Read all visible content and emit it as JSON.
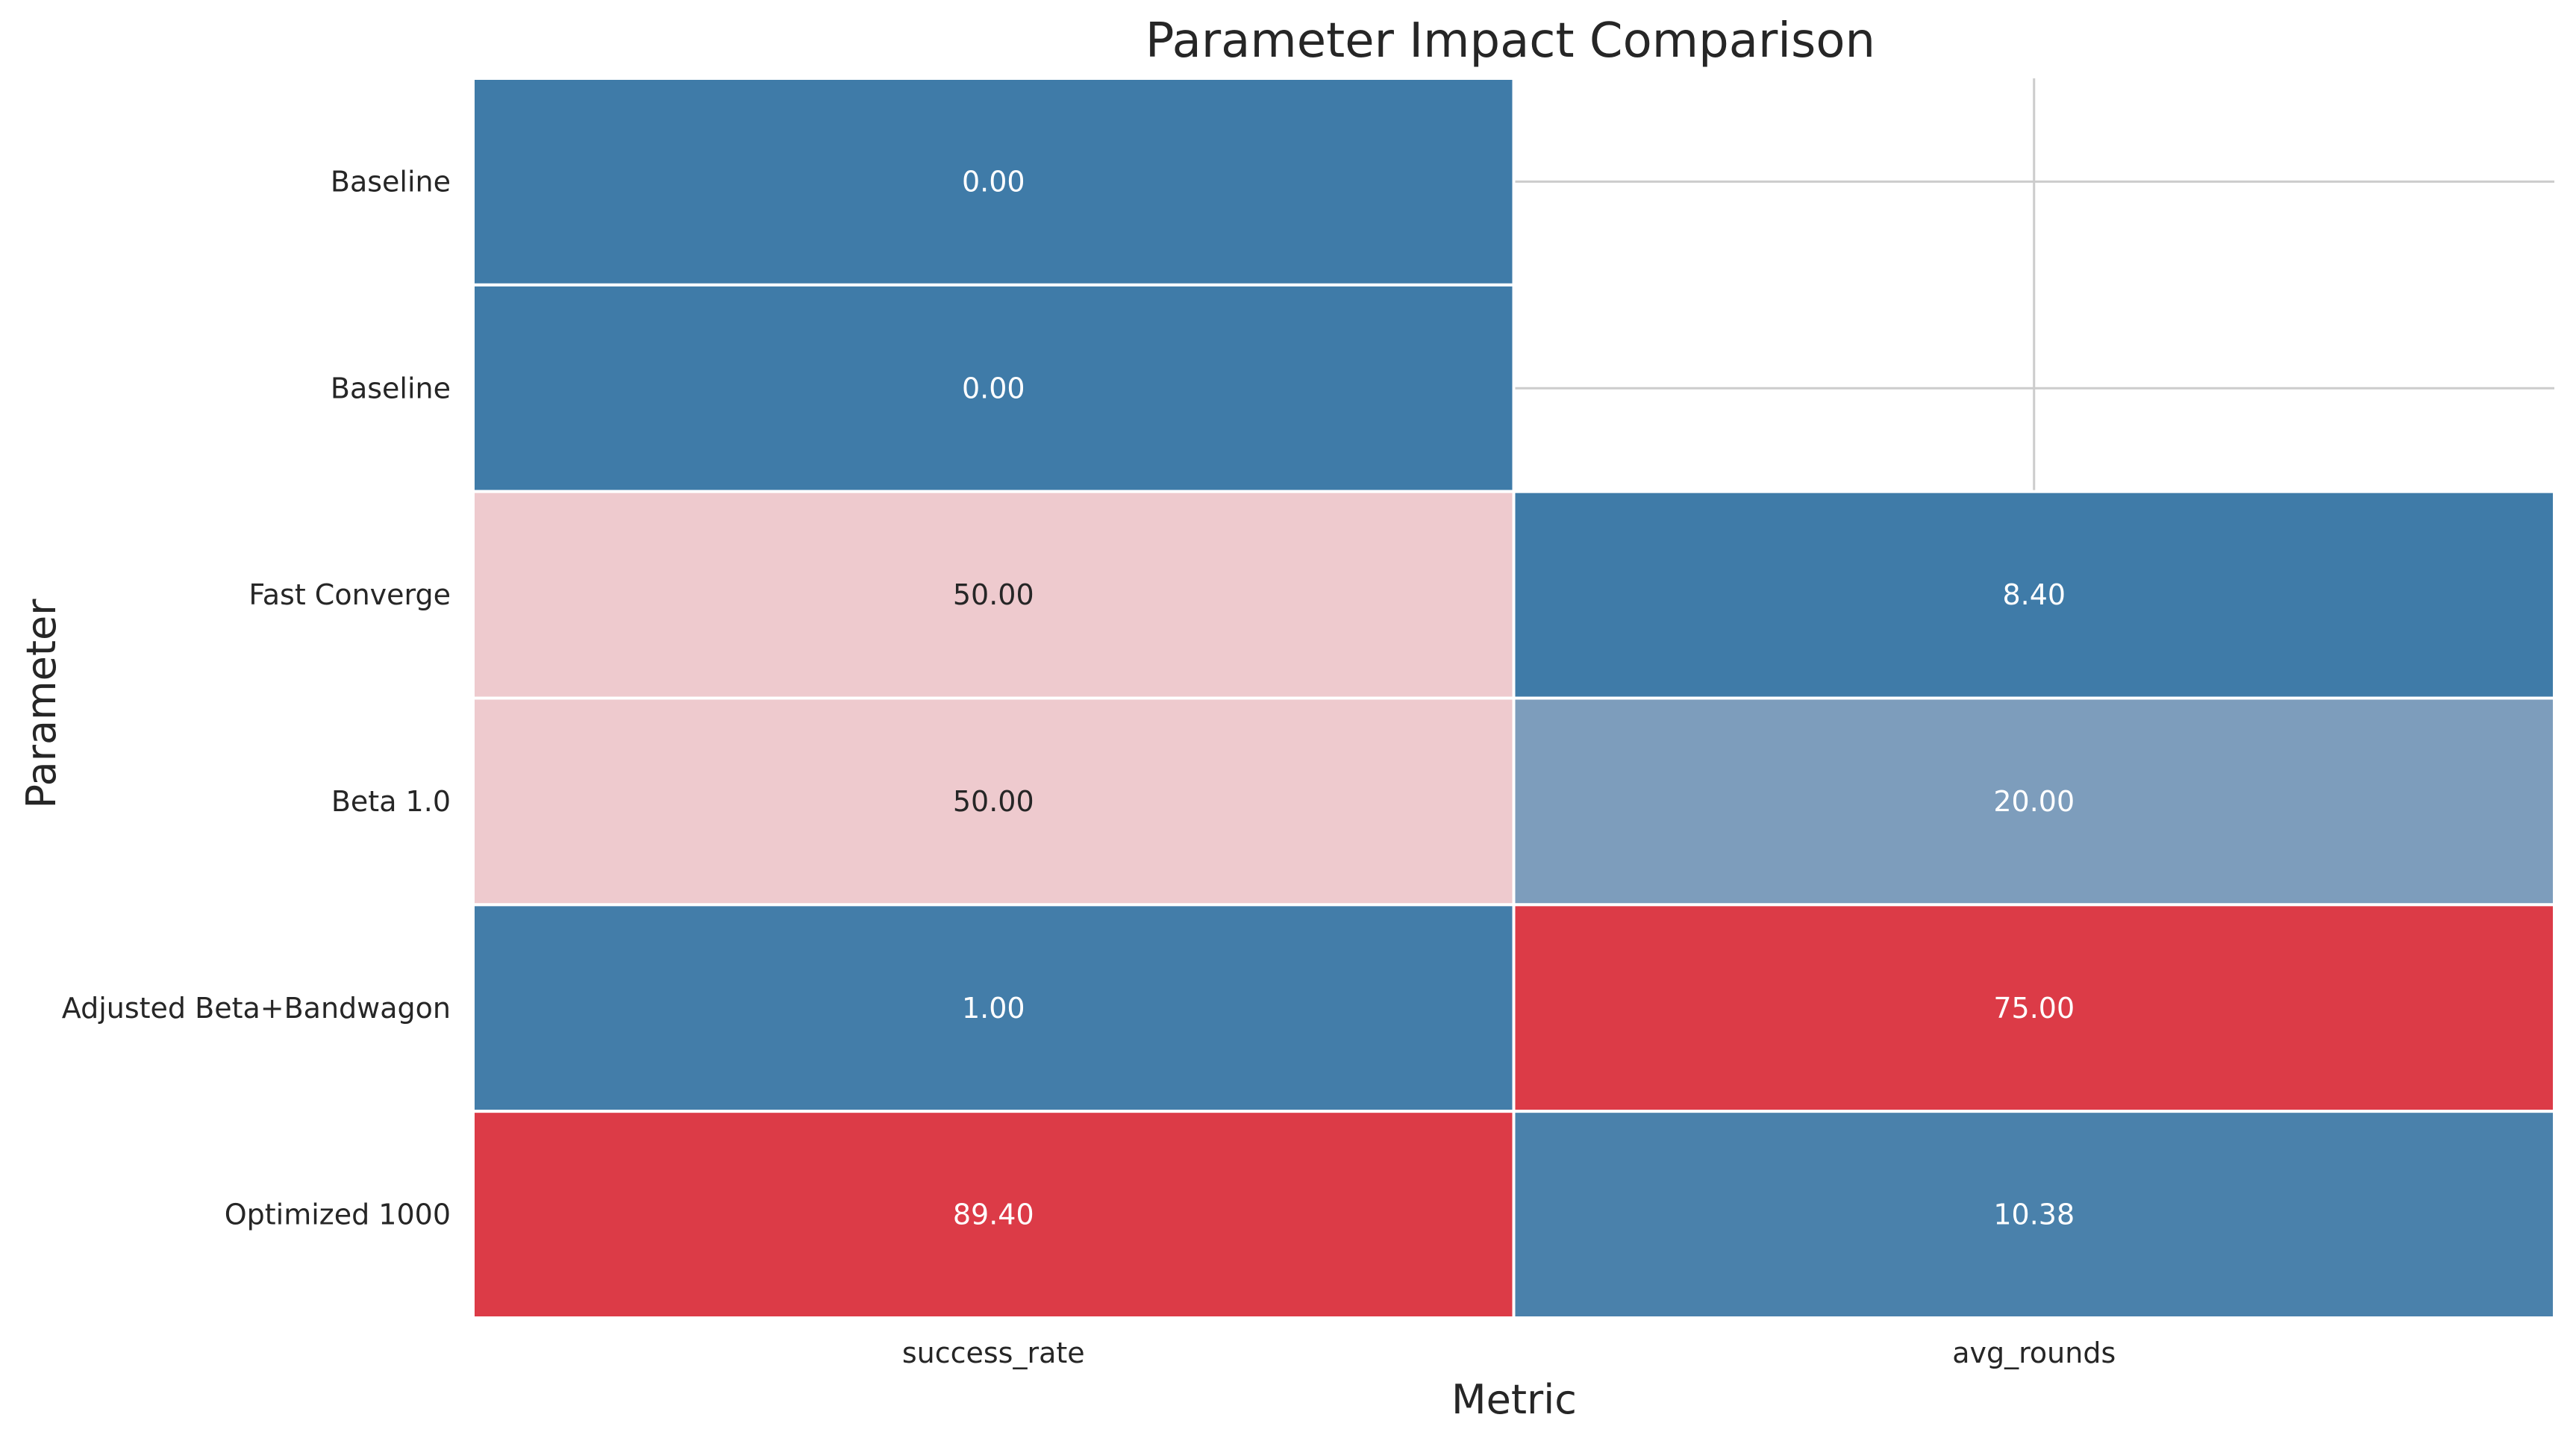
{
  "chart_data": {
    "type": "heatmap",
    "title": "Parameter Impact Comparison",
    "xlabel": "Metric",
    "ylabel": "Parameter",
    "columns": [
      "success_rate",
      "avg_rounds"
    ],
    "rows": [
      "Baseline",
      "Baseline",
      "Fast Converge",
      "Beta 1.0",
      "Adjusted Beta+Bandwagon",
      "Optimized 1000"
    ],
    "values": [
      [
        0.0,
        null
      ],
      [
        0.0,
        null
      ],
      [
        50.0,
        8.4
      ],
      [
        50.0,
        20.0
      ],
      [
        1.0,
        75.0
      ],
      [
        89.4,
        10.38
      ]
    ],
    "labels": [
      [
        "0.00",
        ""
      ],
      [
        "0.00",
        ""
      ],
      [
        "50.00",
        "8.40"
      ],
      [
        "50.00",
        "20.00"
      ],
      [
        "1.00",
        "75.00"
      ],
      [
        "89.40",
        "10.38"
      ]
    ],
    "colormap": {
      "low": "#3f7ba8",
      "mid": "#f0dde0",
      "high": "#dc3b47"
    },
    "column_ranges": [
      [
        0,
        89.4
      ],
      [
        8.4,
        75
      ]
    ],
    "cell_border_color": "#ffffff",
    "grid": true,
    "legend": "none"
  }
}
